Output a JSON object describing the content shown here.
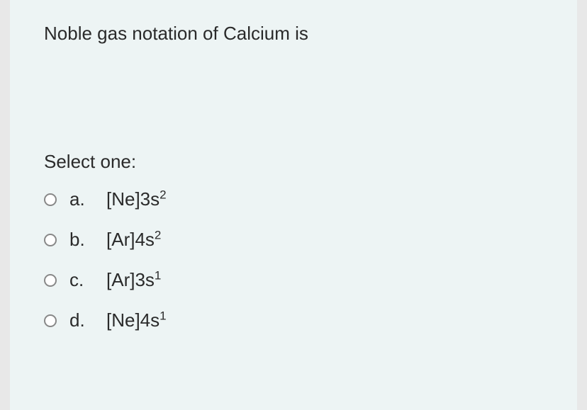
{
  "question": {
    "text": "Noble gas notation of  Calcium is",
    "text_color": "#2a2a2a",
    "text_fontsize": 26,
    "background_color": "#edf4f4",
    "page_background": "#e8e8e8"
  },
  "select_label": "Select one:",
  "options": [
    {
      "letter": "a.",
      "base": "[Ne]3s",
      "super": "2"
    },
    {
      "letter": "b.",
      "base": "[Ar]4s",
      "super": "2"
    },
    {
      "letter": "c.",
      "base": "[Ar]3s",
      "super": "1"
    },
    {
      "letter": "d.",
      "base": "[Ne]4s",
      "super": "1"
    }
  ],
  "styling": {
    "option_fontsize": 26,
    "superscript_fontsize": 17,
    "radio_border_color": "#888888",
    "radio_background": "#ffffff",
    "radio_size": 18,
    "option_gap": 26
  }
}
